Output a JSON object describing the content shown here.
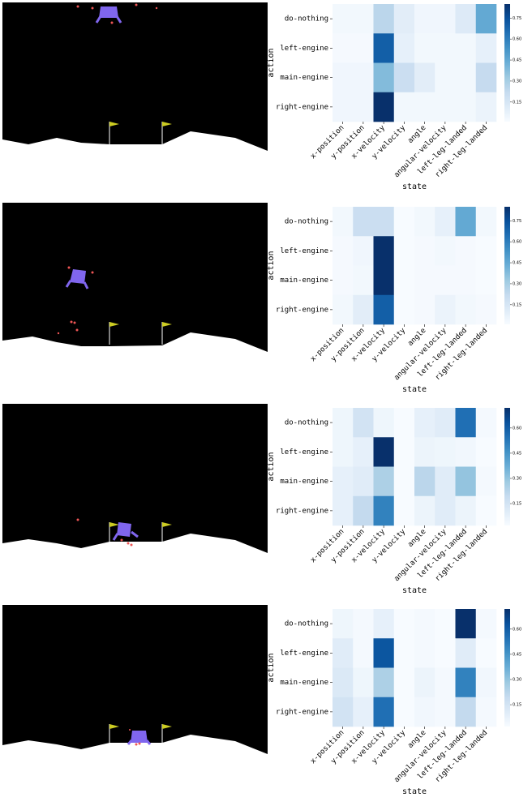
{
  "chart_data": [
    {
      "type": "heatmap",
      "x_label": "state",
      "y_label": "action",
      "colormap": "Blues",
      "x": [
        "x-position",
        "y-position",
        "x-velocity",
        "y-velocity",
        "angle",
        "angular-velocity",
        "left-leg-landed",
        "right-leg-landed"
      ],
      "y": [
        "do-nothing",
        "left-engine",
        "main-engine",
        "right-engine"
      ],
      "values": [
        [
          0.03,
          0.03,
          0.25,
          0.1,
          0.04,
          0.04,
          0.12,
          0.45
        ],
        [
          0.02,
          0.02,
          0.7,
          0.08,
          0.03,
          0.03,
          0.03,
          0.08
        ],
        [
          0.04,
          0.04,
          0.38,
          0.2,
          0.1,
          0.03,
          0.03,
          0.22
        ],
        [
          0.04,
          0.04,
          0.85,
          0.03,
          0.03,
          0.03,
          0.03,
          0.06
        ]
      ],
      "zlim": [
        0.01,
        0.85
      ],
      "zticks": [
        0.15,
        {
          "value": 0.3,
          "label": "0.30"
        },
        0.45,
        {
          "value": 0.6,
          "label": "0.60"
        },
        0.75
      ]
    },
    {
      "type": "heatmap",
      "x_label": "state",
      "y_label": "action",
      "colormap": "Blues",
      "x": [
        "x-position",
        "y-position",
        "x-velocity",
        "y-velocity",
        "angle",
        "angular-velocity",
        "left-leg-landed",
        "right-leg-landed"
      ],
      "y": [
        "do-nothing",
        "left-engine",
        "main-engine",
        "right-engine"
      ],
      "values": [
        [
          0.03,
          0.2,
          0.2,
          0.01,
          0.03,
          0.08,
          0.45,
          0.03
        ],
        [
          0.02,
          0.04,
          0.85,
          0.01,
          0.02,
          0.03,
          0.02,
          0.01
        ],
        [
          0.02,
          0.03,
          0.85,
          0.01,
          0.02,
          0.02,
          0.02,
          0.01
        ],
        [
          0.03,
          0.1,
          0.7,
          0.01,
          0.02,
          0.06,
          0.03,
          0.02
        ]
      ],
      "zlim": [
        0.01,
        0.85
      ],
      "zticks": [
        0.15,
        {
          "value": 0.3,
          "label": "0.30"
        },
        0.45,
        {
          "value": 0.6,
          "label": "0.60"
        },
        0.75
      ]
    },
    {
      "type": "heatmap",
      "x_label": "state",
      "y_label": "action",
      "colormap": "Blues",
      "x": [
        "x-position",
        "y-position",
        "x-velocity",
        "y-velocity",
        "angle",
        "angular-velocity",
        "left-leg-landed",
        "right-leg-landed"
      ],
      "y": [
        "do-nothing",
        "left-engine",
        "main-engine",
        "right-engine"
      ],
      "values": [
        [
          0.05,
          0.15,
          0.05,
          0.02,
          0.08,
          0.1,
          0.55,
          0.03
        ],
        [
          0.05,
          0.08,
          0.72,
          0.02,
          0.06,
          0.05,
          0.04,
          0.02
        ],
        [
          0.08,
          0.1,
          0.25,
          0.02,
          0.22,
          0.1,
          0.3,
          0.03
        ],
        [
          0.08,
          0.2,
          0.5,
          0.02,
          0.06,
          0.1,
          0.06,
          0.02
        ]
      ],
      "zlim": [
        0.02,
        0.72
      ],
      "zticks": [
        0.15,
        {
          "value": 0.3,
          "label": "0.30"
        },
        0.45,
        {
          "value": 0.6,
          "label": "0.60"
        }
      ]
    },
    {
      "type": "heatmap",
      "x_label": "state",
      "y_label": "action",
      "colormap": "Blues",
      "x": [
        "x-position",
        "y-position",
        "x-velocity",
        "y-velocity",
        "angle",
        "angular-velocity",
        "left-leg-landed",
        "right-leg-landed"
      ],
      "y": [
        "do-nothing",
        "left-engine",
        "main-engine",
        "right-engine"
      ],
      "values": [
        [
          0.05,
          0.03,
          0.08,
          0.02,
          0.03,
          0.02,
          0.72,
          0.03
        ],
        [
          0.1,
          0.03,
          0.62,
          0.02,
          0.03,
          0.02,
          0.1,
          0.02
        ],
        [
          0.12,
          0.05,
          0.25,
          0.02,
          0.06,
          0.03,
          0.5,
          0.04
        ],
        [
          0.15,
          0.08,
          0.55,
          0.02,
          0.04,
          0.03,
          0.2,
          0.03
        ]
      ],
      "zlim": [
        0.02,
        0.72
      ],
      "zticks": [
        0.15,
        {
          "value": 0.3,
          "label": "0.30"
        },
        0.45,
        {
          "value": 0.6,
          "label": "0.60"
        }
      ]
    }
  ]
}
